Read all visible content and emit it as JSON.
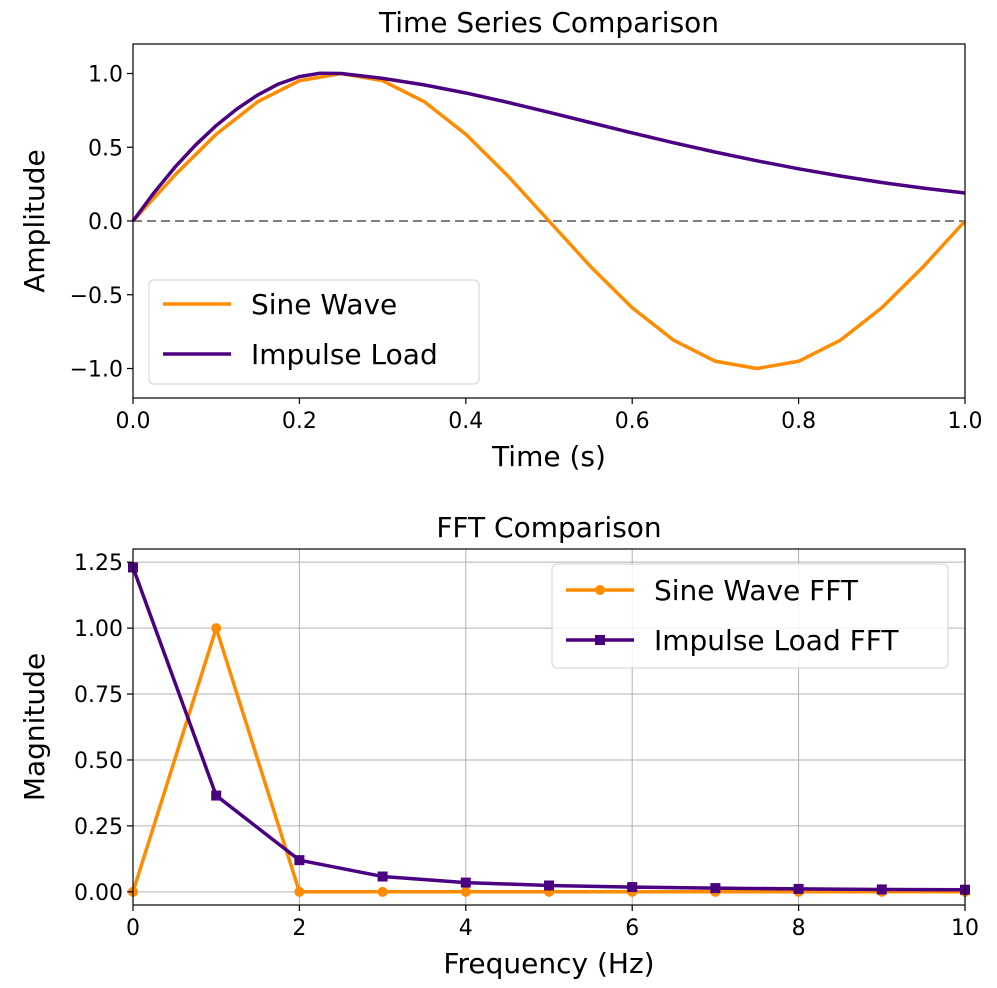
{
  "colors": {
    "sine": "#ff8c00",
    "impulse": "#4b0082",
    "zero_line": "#808080",
    "grid": "#b0b0b0"
  },
  "chart_data": [
    {
      "type": "line",
      "title": "Time Series Comparison",
      "xlabel": "Time (s)",
      "ylabel": "Amplitude",
      "xlim": [
        0,
        1
      ],
      "ylim": [
        -1.2,
        1.2
      ],
      "xticks": [
        0.0,
        0.2,
        0.4,
        0.6,
        0.8,
        1.0
      ],
      "xtick_labels": [
        "0.0",
        "0.2",
        "0.4",
        "0.6",
        "0.8",
        "1.0"
      ],
      "yticks": [
        1.0,
        0.5,
        0.0,
        -0.5,
        -1.0
      ],
      "ytick_labels": [
        "1.0",
        "0.5",
        "0.0",
        "−0.5",
        "−1.0"
      ],
      "grid": false,
      "reference_line": {
        "y": 0,
        "style": "dashed"
      },
      "legend": {
        "location": "lower-left",
        "entries": [
          "Sine Wave",
          "Impulse Load"
        ]
      },
      "series": [
        {
          "name": "Sine Wave",
          "color": "#ff8c00",
          "x": [
            0.0,
            0.05,
            0.1,
            0.15,
            0.2,
            0.25,
            0.3,
            0.35,
            0.4,
            0.45,
            0.5,
            0.55,
            0.6,
            0.65,
            0.7,
            0.75,
            0.8,
            0.85,
            0.9,
            0.95,
            1.0
          ],
          "y": [
            0.0,
            0.309,
            0.588,
            0.809,
            0.951,
            1.0,
            0.951,
            0.809,
            0.588,
            0.309,
            0.0,
            -0.309,
            -0.588,
            -0.809,
            -0.951,
            -1.0,
            -0.951,
            -0.809,
            -0.588,
            -0.309,
            0.0
          ]
        },
        {
          "name": "Impulse Load",
          "color": "#4b0082",
          "x": [
            0.0,
            0.025,
            0.05,
            0.075,
            0.1,
            0.125,
            0.15,
            0.175,
            0.2,
            0.225,
            0.25,
            0.3,
            0.35,
            0.4,
            0.45,
            0.5,
            0.55,
            0.6,
            0.65,
            0.7,
            0.75,
            0.8,
            0.85,
            0.9,
            0.95,
            1.0
          ],
          "y": [
            0.0,
            0.19,
            0.362,
            0.514,
            0.647,
            0.76,
            0.855,
            0.929,
            0.979,
            1.002,
            1.0,
            0.967,
            0.923,
            0.868,
            0.805,
            0.737,
            0.667,
            0.597,
            0.53,
            0.467,
            0.408,
            0.354,
            0.305,
            0.261,
            0.223,
            0.19
          ]
        }
      ]
    },
    {
      "type": "line",
      "title": "FFT Comparison",
      "xlabel": "Frequency (Hz)",
      "ylabel": "Magnitude",
      "xlim": [
        0,
        10
      ],
      "ylim": [
        -0.05,
        1.3
      ],
      "xticks": [
        0,
        2,
        4,
        6,
        8,
        10
      ],
      "xtick_labels": [
        "0",
        "2",
        "4",
        "6",
        "8",
        "10"
      ],
      "yticks": [
        0.0,
        0.25,
        0.5,
        0.75,
        1.0,
        1.25
      ],
      "ytick_labels": [
        "0.00",
        "0.25",
        "0.50",
        "0.75",
        "1.00",
        "1.25"
      ],
      "grid": true,
      "legend": {
        "location": "top-right",
        "entries": [
          "Sine Wave FFT",
          "Impulse Load FFT"
        ]
      },
      "series": [
        {
          "name": "Sine Wave FFT",
          "color": "#ff8c00",
          "marker": "circle",
          "x": [
            0,
            1,
            2,
            3,
            4,
            5,
            6,
            7,
            8,
            9,
            10
          ],
          "y": [
            0.0,
            1.0,
            0.0,
            0.0,
            0.0,
            0.0,
            0.0,
            0.0,
            0.0,
            0.0,
            0.0
          ]
        },
        {
          "name": "Impulse Load FFT",
          "color": "#4b0082",
          "marker": "square",
          "x": [
            0,
            1,
            2,
            3,
            4,
            5,
            6,
            7,
            8,
            9,
            10
          ],
          "y": [
            1.23,
            0.365,
            0.12,
            0.058,
            0.035,
            0.024,
            0.018,
            0.014,
            0.011,
            0.009,
            0.008
          ]
        }
      ]
    }
  ]
}
